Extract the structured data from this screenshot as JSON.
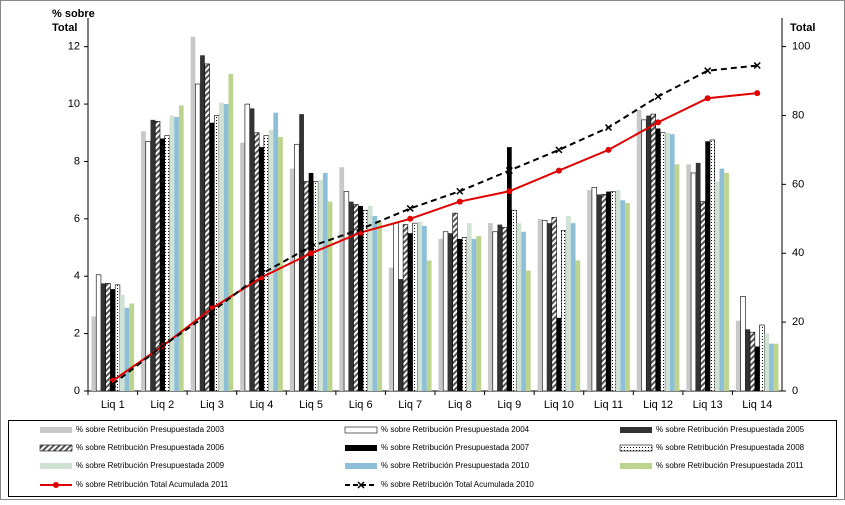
{
  "chart_data": {
    "type": "bar",
    "y_label": [
      "% sobre",
      "Total"
    ],
    "y2_label": "Total",
    "categories": [
      "Liq 1",
      "Liq 2",
      "Liq 3",
      "Liq 4",
      "Liq 5",
      "Liq 6",
      "Liq 7",
      "Liq 8",
      "Liq 9",
      "Liq 10",
      "Liq 11",
      "Liq 12",
      "Liq 13",
      "Liq 14"
    ],
    "ylim": [
      0,
      13
    ],
    "yticks": [
      0,
      2,
      4,
      6,
      8,
      10,
      12
    ],
    "y2lim": [
      0,
      108.3
    ],
    "y2ticks": [
      0,
      20,
      40,
      60,
      80,
      100
    ],
    "series": [
      {
        "name": "% sobre Retribución Presupuestada 2003",
        "color": "#c8c8c8",
        "values": [
          2.6,
          9.05,
          12.35,
          8.65,
          7.75,
          7.8,
          4.3,
          5.3,
          5.85,
          6.0,
          7.0,
          9.8,
          7.9,
          2.45
        ]
      },
      {
        "name": "% sobre Retribución Presupuestada 2004",
        "color": "#ffffff",
        "values": [
          4.05,
          8.7,
          10.7,
          10.0,
          8.6,
          6.95,
          5.85,
          5.55,
          5.55,
          5.95,
          7.1,
          9.45,
          7.6,
          3.3
        ]
      },
      {
        "name": "% sobre Retribución Presupuestada 2005",
        "color": "#333333",
        "values": [
          3.75,
          9.45,
          11.7,
          9.85,
          9.65,
          6.6,
          3.9,
          5.5,
          5.8,
          5.85,
          6.85,
          9.6,
          7.95,
          2.15
        ]
      },
      {
        "name": "% sobre Retribución Presupuestada 2006",
        "color": "#ffffff",
        "pattern": "hatch",
        "values": [
          3.75,
          9.4,
          11.4,
          9.0,
          7.3,
          6.5,
          5.8,
          6.2,
          5.7,
          6.05,
          6.85,
          9.65,
          6.6,
          2.05
        ]
      },
      {
        "name": "% sobre Retribución Presupuestada 2007",
        "color": "#000000",
        "values": [
          3.55,
          8.8,
          9.35,
          8.5,
          7.6,
          6.45,
          5.5,
          5.3,
          8.5,
          2.55,
          6.95,
          9.15,
          8.7,
          1.55
        ]
      },
      {
        "name": "% sobre Retribución Presupuestada 2008",
        "color": "#ffffff",
        "pattern": "dots",
        "values": [
          3.7,
          8.9,
          9.6,
          8.9,
          7.3,
          6.3,
          5.85,
          5.35,
          6.3,
          5.6,
          6.95,
          9.0,
          8.75,
          2.3
        ]
      },
      {
        "name": "% sobre Retribución Presupuestada 2009",
        "color": "#cfe2d4",
        "values": [
          3.35,
          9.6,
          10.05,
          9.1,
          7.35,
          6.45,
          5.9,
          5.85,
          5.85,
          6.1,
          7.0,
          9.0,
          7.3,
          2.0
        ]
      },
      {
        "name": "% sobre Retribución Presupuestada 2010",
        "color": "#8dbfd8",
        "values": [
          2.9,
          9.55,
          10.0,
          9.7,
          7.6,
          6.1,
          5.75,
          5.3,
          5.55,
          5.85,
          6.65,
          8.95,
          7.75,
          1.65
        ]
      },
      {
        "name": "% sobre Retribución Presupuestada 2011",
        "color": "#bcd48e",
        "values": [
          3.05,
          9.95,
          11.05,
          8.85,
          6.6,
          5.9,
          4.55,
          5.4,
          4.2,
          4.55,
          6.55,
          7.9,
          7.6,
          1.65
        ]
      },
      {
        "name": "% sobre Retribución Total Acumulada 2011",
        "color": "#e00000",
        "type": "line",
        "axis": "y2",
        "marker": "circle",
        "values": [
          3,
          13,
          24,
          33,
          40,
          46,
          50,
          55,
          58,
          64,
          70,
          78,
          85,
          86.5
        ]
      },
      {
        "name": "% sobre Retribución Total Acumulada 2010",
        "color": "#000000",
        "type": "line",
        "axis": "y2",
        "marker": "x",
        "dashed": true,
        "values": [
          2,
          13,
          23,
          34,
          42,
          47,
          53,
          58,
          64,
          70,
          76.5,
          85.5,
          93,
          94.5
        ]
      }
    ]
  }
}
